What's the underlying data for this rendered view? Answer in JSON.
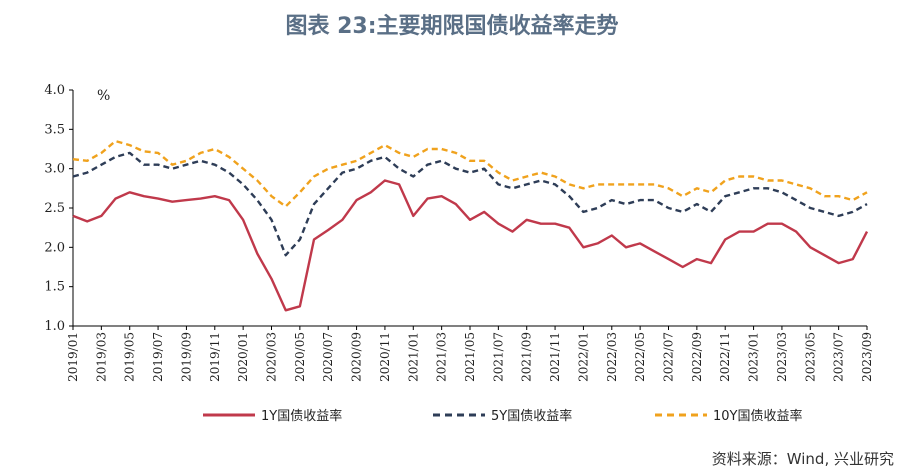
{
  "title": "图表 23:主要期限国债收益率走势",
  "source": "资料来源：Wind, 兴业研究",
  "chart_data": {
    "type": "line",
    "ylabel": "%",
    "ylim": [
      1.0,
      4.0
    ],
    "yticks": [
      "4.0",
      "3.5",
      "3.0",
      "2.5",
      "2.0",
      "1.5",
      "1.0"
    ],
    "xticks": [
      "2019/01",
      "2019/03",
      "2019/05",
      "2019/07",
      "2019/09",
      "2019/11",
      "2020/01",
      "2020/03",
      "2020/05",
      "2020/07",
      "2020/09",
      "2020/11",
      "2021/01",
      "2021/03",
      "2021/05",
      "2021/07",
      "2021/09",
      "2021/11",
      "2022/01",
      "2022/03",
      "2022/05",
      "2022/07",
      "2022/09",
      "2022/11",
      "2023/01",
      "2023/03",
      "2023/05",
      "2023/07",
      "2023/09"
    ],
    "x": [
      "2019/01",
      "2019/02",
      "2019/03",
      "2019/04",
      "2019/05",
      "2019/06",
      "2019/07",
      "2019/08",
      "2019/09",
      "2019/10",
      "2019/11",
      "2019/12",
      "2020/01",
      "2020/02",
      "2020/03",
      "2020/04",
      "2020/05",
      "2020/06",
      "2020/07",
      "2020/08",
      "2020/09",
      "2020/10",
      "2020/11",
      "2020/12",
      "2021/01",
      "2021/02",
      "2021/03",
      "2021/04",
      "2021/05",
      "2021/06",
      "2021/07",
      "2021/08",
      "2021/09",
      "2021/10",
      "2021/11",
      "2021/12",
      "2022/01",
      "2022/02",
      "2022/03",
      "2022/04",
      "2022/05",
      "2022/06",
      "2022/07",
      "2022/08",
      "2022/09",
      "2022/10",
      "2022/11",
      "2022/12",
      "2023/01",
      "2023/02",
      "2023/03",
      "2023/04",
      "2023/05",
      "2023/06",
      "2023/07",
      "2023/08",
      "2023/09"
    ],
    "series": [
      {
        "name": "1Y国债收益率",
        "color": "#c0394b",
        "dash": "solid",
        "values": [
          2.4,
          2.33,
          2.4,
          2.62,
          2.7,
          2.65,
          2.62,
          2.58,
          2.6,
          2.62,
          2.65,
          2.6,
          2.35,
          1.92,
          1.6,
          1.2,
          1.25,
          2.1,
          2.22,
          2.35,
          2.6,
          2.7,
          2.85,
          2.8,
          2.4,
          2.62,
          2.65,
          2.55,
          2.35,
          2.45,
          2.3,
          2.2,
          2.35,
          2.3,
          2.3,
          2.25,
          2.0,
          2.05,
          2.15,
          2.0,
          2.05,
          1.95,
          1.85,
          1.75,
          1.85,
          1.8,
          2.1,
          2.2,
          2.2,
          2.3,
          2.3,
          2.2,
          2.0,
          1.9,
          1.8,
          1.85,
          2.2
        ]
      },
      {
        "name": "5Y国债收益率",
        "color": "#2e3d57",
        "dash": "dashed",
        "values": [
          2.9,
          2.95,
          3.05,
          3.15,
          3.2,
          3.05,
          3.05,
          3.0,
          3.05,
          3.1,
          3.05,
          2.95,
          2.8,
          2.6,
          2.35,
          1.9,
          2.1,
          2.55,
          2.75,
          2.95,
          3.0,
          3.1,
          3.15,
          3.0,
          2.9,
          3.05,
          3.1,
          3.0,
          2.95,
          3.0,
          2.8,
          2.75,
          2.8,
          2.85,
          2.8,
          2.65,
          2.45,
          2.5,
          2.6,
          2.55,
          2.6,
          2.6,
          2.5,
          2.45,
          2.55,
          2.45,
          2.65,
          2.7,
          2.75,
          2.75,
          2.7,
          2.6,
          2.5,
          2.45,
          2.4,
          2.45,
          2.55
        ]
      },
      {
        "name": "10Y国债收益率",
        "color": "#f0a21d",
        "dash": "dashed",
        "values": [
          3.12,
          3.1,
          3.2,
          3.35,
          3.3,
          3.22,
          3.2,
          3.05,
          3.1,
          3.2,
          3.25,
          3.15,
          3.0,
          2.85,
          2.65,
          2.52,
          2.7,
          2.9,
          3.0,
          3.05,
          3.1,
          3.2,
          3.3,
          3.2,
          3.15,
          3.25,
          3.25,
          3.2,
          3.1,
          3.1,
          2.95,
          2.85,
          2.9,
          2.95,
          2.9,
          2.8,
          2.75,
          2.8,
          2.8,
          2.8,
          2.8,
          2.8,
          2.75,
          2.65,
          2.75,
          2.7,
          2.85,
          2.9,
          2.9,
          2.85,
          2.85,
          2.8,
          2.75,
          2.65,
          2.65,
          2.6,
          2.7
        ]
      }
    ]
  }
}
